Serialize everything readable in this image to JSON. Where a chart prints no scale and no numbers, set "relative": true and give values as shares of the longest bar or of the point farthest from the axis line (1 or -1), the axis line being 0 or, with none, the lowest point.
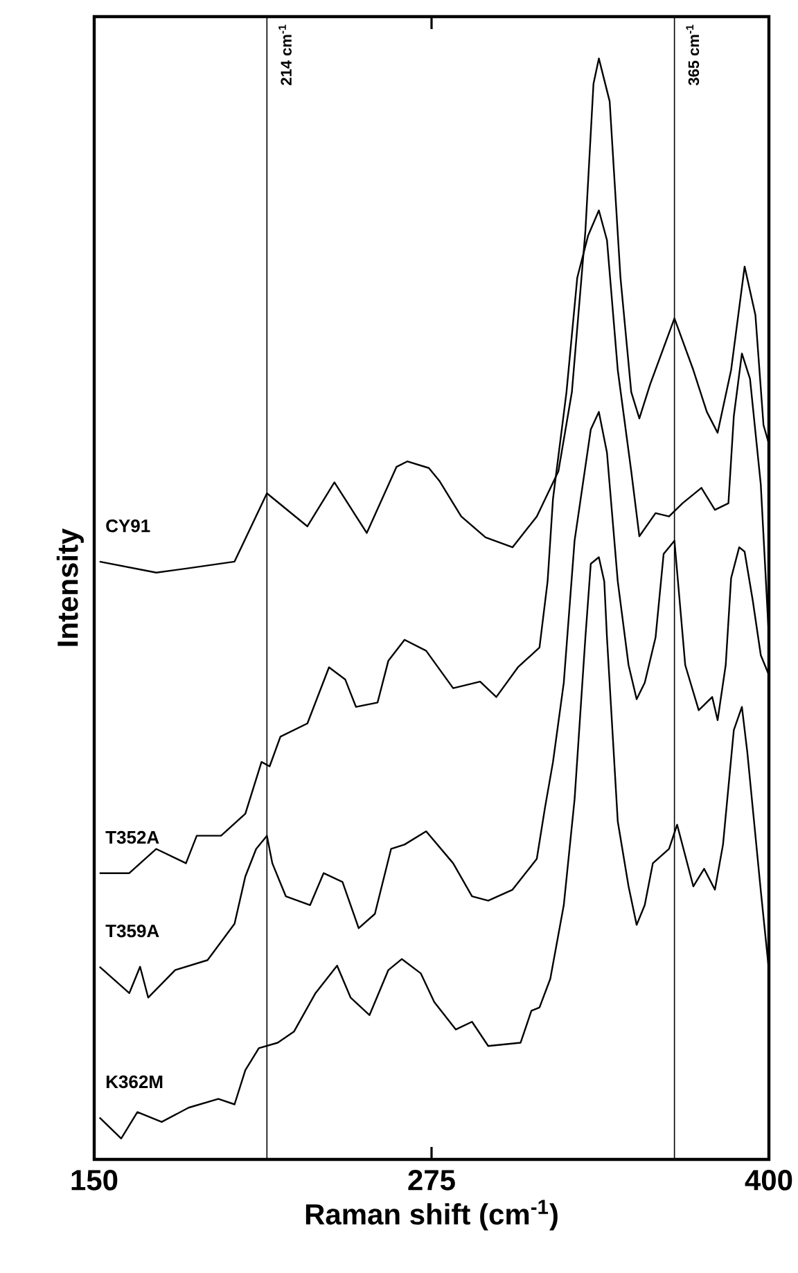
{
  "chart_data": {
    "type": "line",
    "xlabel": "Raman shift (cm$^{-1}$)",
    "ylabel": "Intensity",
    "relative": true,
    "xlim": [
      150,
      400
    ],
    "xticks": [
      150,
      275,
      400
    ],
    "marker": "none",
    "ref_lines": [
      {
        "axis": "x",
        "value": 214,
        "label": "214 cm$^{-1}$"
      },
      {
        "axis": "x",
        "value": 365,
        "label": "365 cm$^{-1}$"
      }
    ],
    "series": [
      {
        "name": "CY91",
        "color": "#000000",
        "x": [
          152,
          173,
          185,
          202,
          214,
          229,
          239,
          251,
          262,
          266,
          274,
          278,
          286,
          295,
          305,
          314,
          322,
          327,
          332,
          335,
          337,
          341,
          345,
          349,
          352,
          356,
          365,
          372,
          377,
          381,
          386,
          391,
          395,
          398,
          400
        ],
        "values": [
          0.543,
          0.533,
          0.537,
          0.543,
          0.605,
          0.575,
          0.615,
          0.569,
          0.629,
          0.634,
          0.628,
          0.616,
          0.584,
          0.565,
          0.556,
          0.584,
          0.625,
          0.697,
          0.843,
          0.977,
          1,
          0.961,
          0.801,
          0.697,
          0.673,
          0.704,
          0.764,
          0.717,
          0.679,
          0.66,
          0.717,
          0.811,
          0.767,
          0.667,
          0.65
        ]
      },
      {
        "name": "T352A",
        "color": "#000000",
        "x": [
          152,
          163,
          173,
          184,
          188,
          197,
          206,
          212,
          215,
          219,
          229,
          237,
          243,
          247,
          255,
          259,
          265,
          273,
          283,
          293,
          299,
          307,
          315,
          318,
          320,
          325,
          329,
          333,
          337,
          340,
          344,
          349,
          352,
          358,
          363,
          368,
          375,
          380,
          385,
          387,
          390,
          393,
          397,
          400
        ],
        "values": [
          0.26,
          0.26,
          0.282,
          0.269,
          0.294,
          0.294,
          0.314,
          0.361,
          0.357,
          0.384,
          0.396,
          0.447,
          0.436,
          0.411,
          0.415,
          0.453,
          0.472,
          0.462,
          0.428,
          0.434,
          0.42,
          0.447,
          0.465,
          0.525,
          0.6,
          0.697,
          0.801,
          0.839,
          0.862,
          0.835,
          0.717,
          0.625,
          0.566,
          0.587,
          0.584,
          0.596,
          0.61,
          0.59,
          0.596,
          0.675,
          0.732,
          0.709,
          0.613,
          0.474
        ]
      },
      {
        "name": "T359A",
        "color": "#000000",
        "x": [
          152,
          163,
          167,
          170,
          180,
          192,
          202,
          206,
          210,
          214,
          216,
          221,
          230,
          235,
          242,
          248,
          254,
          260,
          265,
          273,
          283,
          290,
          296,
          305,
          314,
          317,
          320,
          324,
          328,
          334,
          337,
          340,
          344,
          348,
          351,
          354,
          358,
          361,
          365,
          369,
          374,
          379,
          381,
          384,
          386,
          389,
          391,
          394,
          397,
          400
        ],
        "values": [
          0.175,
          0.151,
          0.175,
          0.147,
          0.172,
          0.181,
          0.214,
          0.257,
          0.282,
          0.294,
          0.269,
          0.239,
          0.231,
          0.26,
          0.252,
          0.21,
          0.223,
          0.282,
          0.286,
          0.298,
          0.269,
          0.239,
          0.235,
          0.245,
          0.273,
          0.319,
          0.361,
          0.433,
          0.562,
          0.663,
          0.679,
          0.642,
          0.525,
          0.449,
          0.418,
          0.433,
          0.474,
          0.55,
          0.562,
          0.449,
          0.408,
          0.42,
          0.399,
          0.449,
          0.528,
          0.556,
          0.552,
          0.508,
          0.458,
          0.44
        ]
      },
      {
        "name": "K362M",
        "color": "#000000",
        "x": [
          152,
          160,
          166,
          175,
          185,
          196,
          202,
          206,
          211,
          218,
          224,
          232,
          240,
          245,
          252,
          259,
          264,
          271,
          276,
          284,
          290,
          296,
          308,
          312,
          315,
          319,
          324,
          328,
          332,
          334,
          337,
          339,
          340,
          344,
          348,
          351,
          354,
          357,
          363,
          366,
          372,
          376,
          380,
          383,
          387,
          390,
          392,
          397,
          400
        ],
        "values": [
          0.038,
          0.019,
          0.043,
          0.034,
          0.047,
          0.055,
          0.05,
          0.081,
          0.101,
          0.106,
          0.116,
          0.151,
          0.176,
          0.147,
          0.131,
          0.172,
          0.182,
          0.169,
          0.143,
          0.118,
          0.125,
          0.103,
          0.106,
          0.135,
          0.138,
          0.164,
          0.231,
          0.327,
          0.474,
          0.541,
          0.547,
          0.525,
          0.474,
          0.307,
          0.248,
          0.213,
          0.231,
          0.269,
          0.282,
          0.304,
          0.248,
          0.264,
          0.245,
          0.286,
          0.39,
          0.411,
          0.37,
          0.244,
          0.172
        ]
      }
    ]
  }
}
